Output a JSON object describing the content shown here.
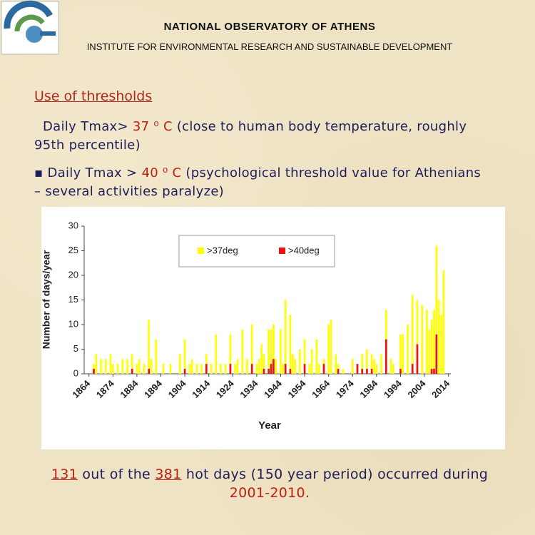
{
  "header": {
    "title": "NATIONAL OBSERVATORY OF ATHENS",
    "subtitle": "INSTITUTE FOR ENVIRONMENTAL RESEARCH AND SUSTAINABLE DEVELOPMENT"
  },
  "heading": "Use of thresholds",
  "bullets": [
    {
      "parts": [
        "Daily Tmax> ",
        "37 ⁰ C",
        " (close to human body temperature, roughly 95th percentile)"
      ]
    },
    {
      "parts": [
        "▪ Daily Tmax > ",
        "40 ⁰ C",
        " (psychological threshold value for Athenians – several activities paralyze)"
      ]
    }
  ],
  "footer": {
    "parts": [
      "131",
      " out of the ",
      "381",
      " hot days (150 year period) occurred during ",
      "2001-2010."
    ]
  },
  "chart_data": {
    "type": "bar",
    "x_label": "Year",
    "y_label": "Number of days/year",
    "legend": "upper center",
    "xlim": [
      1862,
      2015
    ],
    "ylim": [
      0,
      30
    ],
    "xticks": [
      1864,
      1874,
      1884,
      1894,
      1904,
      1914,
      1924,
      1934,
      1944,
      1954,
      1964,
      1974,
      1984,
      1994,
      2004,
      2014
    ],
    "yticks": [
      0,
      5,
      10,
      15,
      20,
      25,
      30
    ],
    "x": [
      1864,
      1865,
      1866,
      1867,
      1868,
      1869,
      1870,
      1871,
      1872,
      1873,
      1874,
      1875,
      1876,
      1877,
      1878,
      1879,
      1880,
      1881,
      1882,
      1883,
      1884,
      1885,
      1886,
      1887,
      1888,
      1889,
      1890,
      1891,
      1892,
      1893,
      1894,
      1895,
      1896,
      1897,
      1898,
      1899,
      1900,
      1901,
      1902,
      1903,
      1904,
      1905,
      1906,
      1907,
      1908,
      1909,
      1910,
      1911,
      1912,
      1913,
      1914,
      1915,
      1916,
      1917,
      1918,
      1919,
      1920,
      1921,
      1922,
      1923,
      1924,
      1925,
      1926,
      1927,
      1928,
      1929,
      1930,
      1931,
      1932,
      1933,
      1934,
      1935,
      1936,
      1937,
      1938,
      1939,
      1940,
      1941,
      1942,
      1943,
      1944,
      1945,
      1946,
      1947,
      1948,
      1949,
      1950,
      1951,
      1952,
      1953,
      1954,
      1955,
      1956,
      1957,
      1958,
      1959,
      1960,
      1961,
      1962,
      1963,
      1964,
      1965,
      1966,
      1967,
      1968,
      1969,
      1970,
      1971,
      1972,
      1973,
      1974,
      1975,
      1976,
      1977,
      1978,
      1979,
      1980,
      1981,
      1982,
      1983,
      1984,
      1985,
      1986,
      1987,
      1988,
      1989,
      1990,
      1991,
      1992,
      1993,
      1994,
      1995,
      1996,
      1997,
      1998,
      1999,
      2000,
      2001,
      2002,
      2003,
      2004,
      2005,
      2006,
      2007,
      2008,
      2009,
      2010,
      2011,
      2012,
      2013
    ],
    "series": [
      {
        "name": ">37deg",
        "color": "#ffff00",
        "values": [
          0,
          0,
          2,
          4,
          0,
          3,
          0,
          3,
          0,
          4,
          2,
          0,
          2,
          0,
          3,
          0,
          3,
          0,
          4,
          0,
          2,
          3,
          0,
          2,
          0,
          11,
          3,
          0,
          7,
          0,
          0,
          2,
          0,
          0,
          2,
          0,
          0,
          0,
          4,
          0,
          7,
          0,
          2,
          3,
          0,
          2,
          0,
          2,
          0,
          4,
          0,
          2,
          0,
          8,
          0,
          2,
          0,
          2,
          0,
          8,
          0,
          2,
          3,
          0,
          9,
          0,
          3,
          0,
          10,
          0,
          2,
          3,
          6,
          4,
          0,
          9,
          9,
          10,
          3,
          0,
          9,
          2,
          15,
          0,
          12,
          4,
          3,
          0,
          5,
          0,
          7,
          0,
          2,
          5,
          0,
          7,
          2,
          0,
          3,
          0,
          10,
          11,
          0,
          4,
          2,
          0,
          1,
          0,
          0,
          0,
          3,
          0,
          2,
          0,
          4,
          0,
          5,
          0,
          4,
          3,
          2,
          0,
          4,
          0,
          13,
          0,
          3,
          2,
          0,
          0,
          8,
          8,
          0,
          10,
          0,
          16,
          0,
          15,
          0,
          14,
          0,
          13,
          9,
          11,
          13,
          26,
          15,
          12,
          21,
          0
        ]
      },
      {
        "name": ">40deg",
        "color": "#ee1111",
        "values": [
          0,
          0,
          1,
          0,
          0,
          0,
          0,
          0,
          0,
          0,
          0,
          0,
          0,
          0,
          0,
          0,
          0,
          0,
          1,
          0,
          0,
          0,
          0,
          0,
          0,
          1,
          0,
          0,
          0,
          0,
          0,
          0,
          0,
          0,
          0,
          0,
          0,
          0,
          0,
          0,
          1,
          0,
          0,
          0,
          0,
          0,
          0,
          0,
          0,
          2,
          0,
          0,
          0,
          0,
          0,
          0,
          0,
          0,
          0,
          2,
          0,
          0,
          0,
          0,
          0,
          0,
          0,
          0,
          2,
          0,
          0,
          0,
          0,
          1,
          0,
          1,
          2,
          3,
          0,
          0,
          0,
          0,
          2,
          0,
          1,
          0,
          0,
          0,
          0,
          0,
          2,
          0,
          0,
          0,
          0,
          0,
          0,
          0,
          2,
          0,
          0,
          0,
          0,
          0,
          1,
          0,
          0,
          0,
          0,
          0,
          0,
          0,
          2,
          0,
          1,
          0,
          1,
          0,
          1,
          0,
          0,
          0,
          0,
          0,
          7,
          0,
          0,
          0,
          0,
          0,
          1,
          0,
          0,
          0,
          0,
          2,
          0,
          6,
          0,
          0,
          0,
          0,
          0,
          1,
          1,
          8,
          0,
          0,
          0,
          0
        ]
      }
    ]
  }
}
